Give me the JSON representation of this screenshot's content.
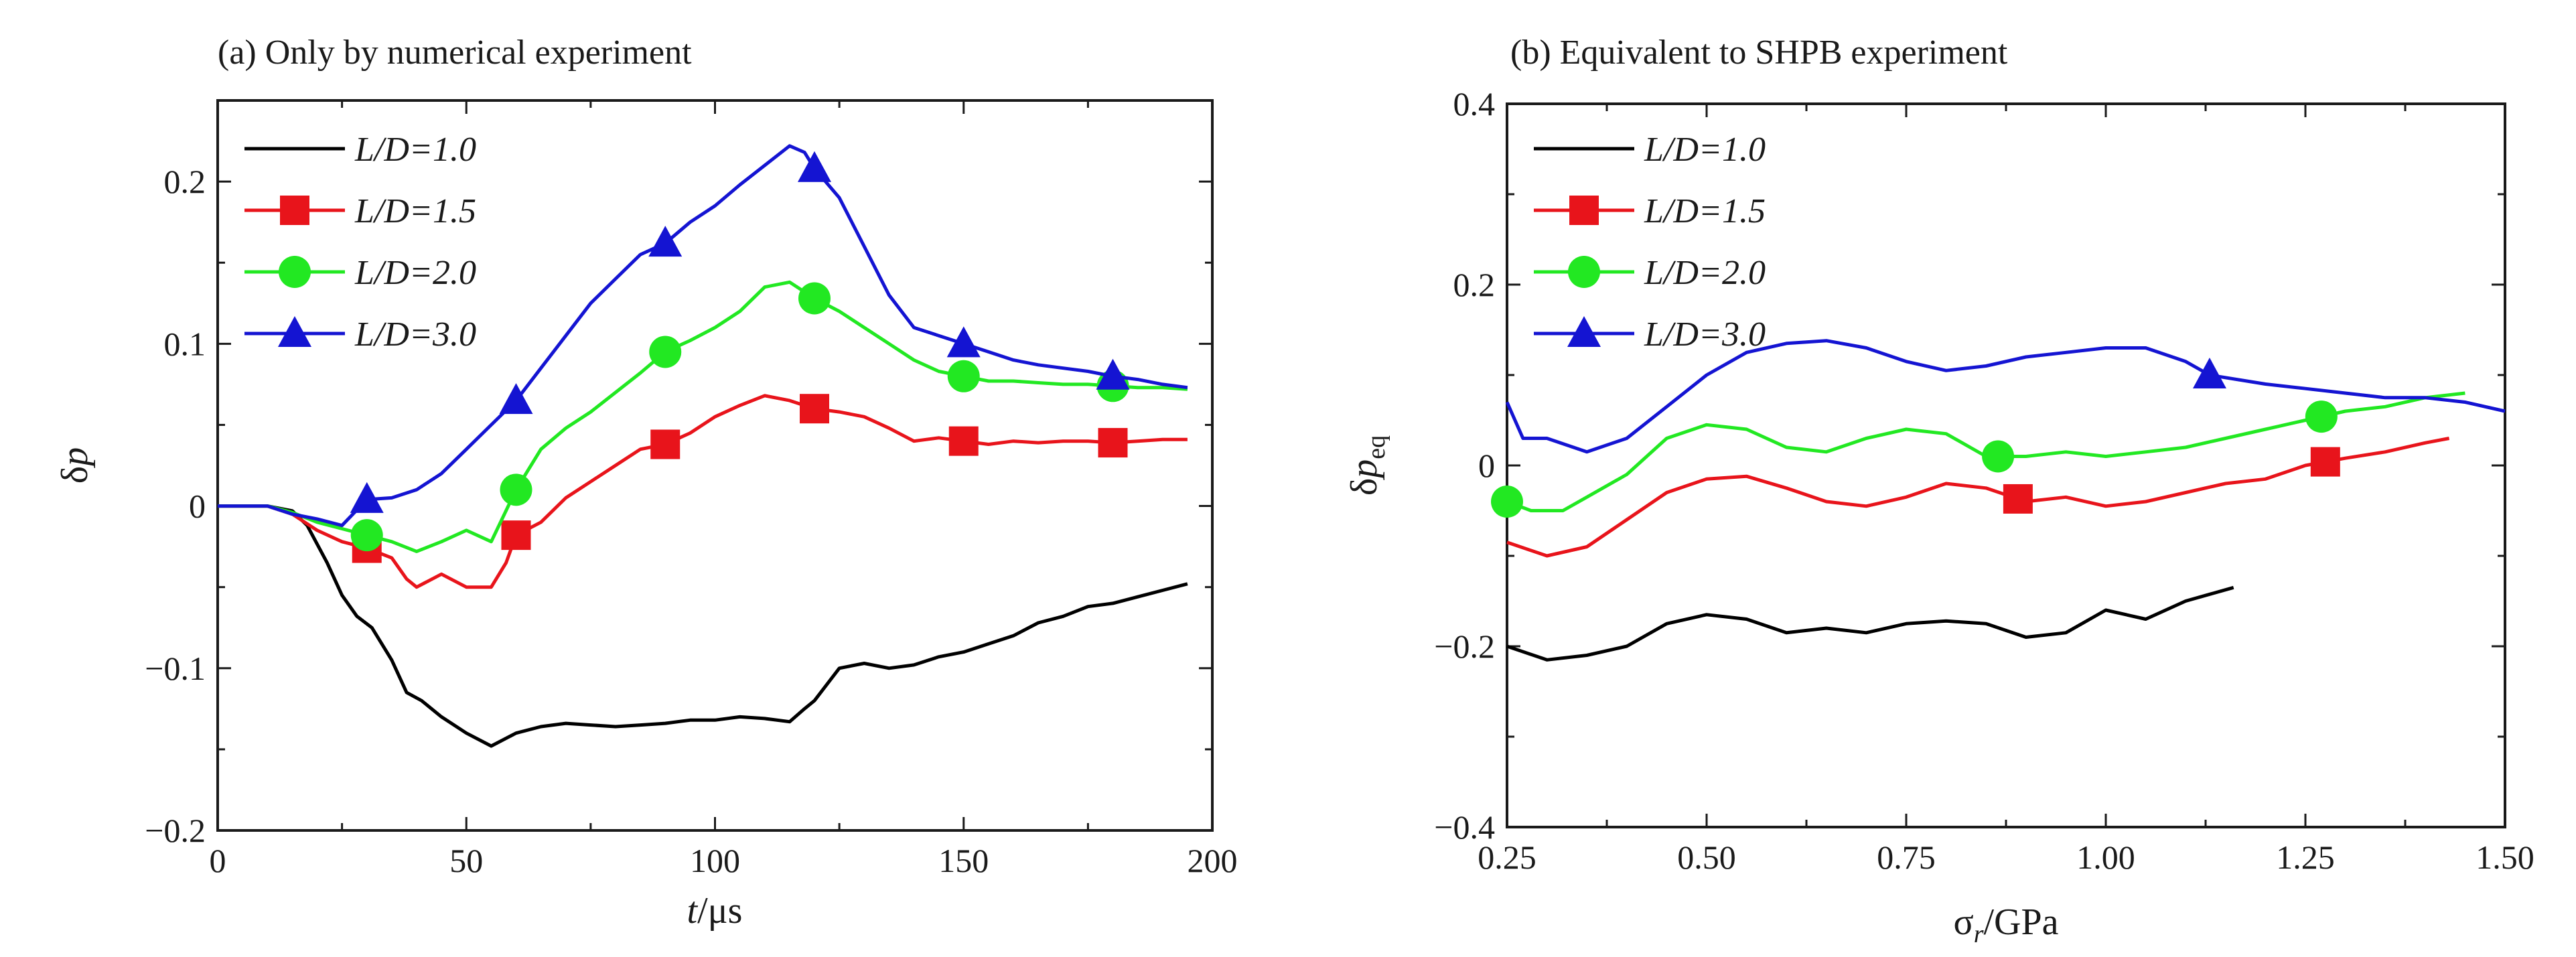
{
  "colors": {
    "L/D=1.0": "#000000",
    "L/D=1.5": "#e8141b",
    "L/D=2.0": "#22e822",
    "L/D=3.0": "#1414d2"
  },
  "legend_labels": [
    "L/D=1.0",
    "L/D=1.5",
    "L/D=2.0",
    "L/D=3.0"
  ],
  "chart_data": [
    {
      "type": "line",
      "title": "(a) Only by numerical experiment",
      "xlabel": "t/μs",
      "ylabel": "δp",
      "xlim": [
        0,
        200
      ],
      "ylim": [
        -0.2,
        0.25
      ],
      "xticks": [
        0,
        50,
        100,
        150,
        200
      ],
      "xtick_labels": [
        "0",
        "50",
        "100",
        "150",
        "200"
      ],
      "yticks": [
        -0.2,
        -0.1,
        0,
        0.1,
        0.2
      ],
      "ytick_labels": [
        "−0.2",
        "−0.1",
        "0",
        "0.1",
        "0.2"
      ],
      "grid": false,
      "legend_position": "top-left",
      "series": [
        {
          "name": "L/D=1.0",
          "marker": "none",
          "x": [
            0,
            5,
            10,
            15,
            18,
            22,
            25,
            28,
            31,
            35,
            38,
            41,
            45,
            50,
            55,
            60,
            65,
            70,
            75,
            80,
            85,
            90,
            95,
            100,
            105,
            110,
            115,
            118,
            120,
            125,
            130,
            135,
            140,
            145,
            150,
            155,
            160,
            165,
            170,
            175,
            180,
            185,
            190,
            195
          ],
          "y": [
            0,
            0,
            0,
            -0.003,
            -0.012,
            -0.035,
            -0.055,
            -0.068,
            -0.075,
            -0.095,
            -0.115,
            -0.12,
            -0.13,
            -0.14,
            -0.148,
            -0.14,
            -0.136,
            -0.134,
            -0.135,
            -0.136,
            -0.135,
            -0.134,
            -0.132,
            -0.132,
            -0.13,
            -0.131,
            -0.133,
            -0.125,
            -0.12,
            -0.1,
            -0.097,
            -0.1,
            -0.098,
            -0.093,
            -0.09,
            -0.085,
            -0.08,
            -0.072,
            -0.068,
            -0.062,
            -0.06,
            -0.056,
            -0.052,
            -0.048
          ]
        },
        {
          "name": "L/D=1.5",
          "marker": "square",
          "x": [
            0,
            5,
            10,
            15,
            20,
            25,
            30,
            35,
            38,
            40,
            45,
            50,
            55,
            58,
            60,
            65,
            70,
            75,
            80,
            85,
            90,
            95,
            100,
            105,
            110,
            115,
            120,
            125,
            130,
            135,
            140,
            145,
            150,
            155,
            160,
            165,
            170,
            175,
            180,
            185,
            190,
            195
          ],
          "y": [
            0,
            0,
            0,
            -0.005,
            -0.015,
            -0.022,
            -0.026,
            -0.032,
            -0.045,
            -0.05,
            -0.042,
            -0.05,
            -0.05,
            -0.035,
            -0.018,
            -0.01,
            0.005,
            0.015,
            0.025,
            0.035,
            0.038,
            0.045,
            0.055,
            0.062,
            0.068,
            0.065,
            0.06,
            0.058,
            0.055,
            0.048,
            0.04,
            0.042,
            0.04,
            0.038,
            0.04,
            0.039,
            0.04,
            0.04,
            0.039,
            0.04,
            0.041,
            0.041
          ],
          "marker_x": [
            30,
            60,
            90,
            120,
            150,
            180
          ]
        },
        {
          "name": "L/D=2.0",
          "marker": "circle",
          "x": [
            0,
            5,
            10,
            15,
            20,
            25,
            30,
            35,
            40,
            45,
            50,
            55,
            60,
            65,
            70,
            75,
            80,
            85,
            90,
            95,
            100,
            105,
            110,
            115,
            120,
            125,
            130,
            135,
            140,
            145,
            150,
            155,
            160,
            165,
            170,
            175,
            180,
            185,
            190,
            195
          ],
          "y": [
            0,
            0,
            0,
            -0.004,
            -0.01,
            -0.014,
            -0.018,
            -0.022,
            -0.028,
            -0.022,
            -0.015,
            -0.022,
            0.01,
            0.035,
            0.048,
            0.058,
            0.07,
            0.082,
            0.095,
            0.102,
            0.11,
            0.12,
            0.135,
            0.138,
            0.128,
            0.12,
            0.11,
            0.1,
            0.09,
            0.083,
            0.08,
            0.077,
            0.077,
            0.076,
            0.075,
            0.075,
            0.074,
            0.073,
            0.073,
            0.072
          ],
          "marker_x": [
            30,
            60,
            90,
            120,
            150,
            180
          ]
        },
        {
          "name": "L/D=3.0",
          "marker": "triangle",
          "x": [
            0,
            5,
            10,
            15,
            20,
            25,
            30,
            35,
            40,
            45,
            50,
            55,
            60,
            65,
            70,
            75,
            80,
            85,
            90,
            95,
            100,
            105,
            110,
            115,
            118,
            120,
            125,
            130,
            135,
            140,
            145,
            150,
            155,
            160,
            165,
            170,
            175,
            180,
            185,
            190,
            195
          ],
          "y": [
            0,
            0,
            0,
            -0.005,
            -0.008,
            -0.012,
            0.004,
            0.005,
            0.01,
            0.02,
            0.035,
            0.05,
            0.065,
            0.085,
            0.105,
            0.125,
            0.14,
            0.155,
            0.162,
            0.175,
            0.185,
            0.198,
            0.21,
            0.222,
            0.218,
            0.208,
            0.19,
            0.16,
            0.13,
            0.11,
            0.105,
            0.1,
            0.095,
            0.09,
            0.087,
            0.085,
            0.083,
            0.08,
            0.078,
            0.075,
            0.073
          ],
          "marker_x": [
            30,
            60,
            90,
            120,
            150,
            180
          ]
        }
      ]
    },
    {
      "type": "line",
      "title": "(b) Equivalent to SHPB experiment",
      "xlabel": "σr/GPa",
      "ylabel": "δp_eq",
      "xlim": [
        0.25,
        1.5
      ],
      "ylim": [
        -0.4,
        0.4
      ],
      "xticks": [
        0.25,
        0.5,
        0.75,
        1.0,
        1.25,
        1.5
      ],
      "xtick_labels": [
        "0.25",
        "0.50",
        "0.75",
        "1.00",
        "1.25",
        "1.50"
      ],
      "yticks": [
        -0.4,
        -0.2,
        0,
        0.2,
        0.4
      ],
      "ytick_labels": [
        "−0.4",
        "−0.2",
        "0",
        "0.2",
        "0.4"
      ],
      "grid": false,
      "legend_position": "top-left",
      "series": [
        {
          "name": "L/D=1.0",
          "marker": "none",
          "x": [
            0.25,
            0.3,
            0.35,
            0.4,
            0.45,
            0.5,
            0.55,
            0.6,
            0.65,
            0.7,
            0.75,
            0.8,
            0.85,
            0.9,
            0.95,
            1.0,
            1.05,
            1.1,
            1.16
          ],
          "y": [
            -0.2,
            -0.215,
            -0.21,
            -0.2,
            -0.175,
            -0.165,
            -0.17,
            -0.185,
            -0.18,
            -0.185,
            -0.175,
            -0.172,
            -0.175,
            -0.19,
            -0.185,
            -0.16,
            -0.17,
            -0.15,
            -0.135
          ]
        },
        {
          "name": "L/D=1.5",
          "marker": "square",
          "x": [
            0.25,
            0.3,
            0.35,
            0.4,
            0.45,
            0.5,
            0.55,
            0.6,
            0.65,
            0.7,
            0.75,
            0.8,
            0.85,
            0.9,
            0.95,
            1.0,
            1.05,
            1.1,
            1.15,
            1.2,
            1.25,
            1.3,
            1.35,
            1.4,
            1.43
          ],
          "y": [
            -0.085,
            -0.1,
            -0.09,
            -0.06,
            -0.03,
            -0.015,
            -0.012,
            -0.025,
            -0.04,
            -0.045,
            -0.035,
            -0.02,
            -0.025,
            -0.04,
            -0.035,
            -0.045,
            -0.04,
            -0.03,
            -0.02,
            -0.015,
            0.0,
            0.008,
            0.015,
            0.025,
            0.03
          ],
          "marker_x": [
            0.89,
            1.275
          ]
        },
        {
          "name": "L/D=2.0",
          "marker": "circle",
          "x": [
            0.25,
            0.28,
            0.32,
            0.35,
            0.4,
            0.45,
            0.5,
            0.55,
            0.6,
            0.65,
            0.7,
            0.75,
            0.8,
            0.85,
            0.9,
            0.95,
            1.0,
            1.05,
            1.1,
            1.15,
            1.2,
            1.25,
            1.3,
            1.35,
            1.4,
            1.45
          ],
          "y": [
            -0.04,
            -0.05,
            -0.05,
            -0.035,
            -0.01,
            0.03,
            0.045,
            0.04,
            0.02,
            0.015,
            0.03,
            0.04,
            0.035,
            0.01,
            0.01,
            0.015,
            0.01,
            0.015,
            0.02,
            0.03,
            0.04,
            0.05,
            0.06,
            0.065,
            0.075,
            0.08
          ],
          "marker_x": [
            0.25,
            0.865,
            1.27
          ]
        },
        {
          "name": "L/D=3.0",
          "marker": "triangle",
          "x": [
            0.25,
            0.27,
            0.3,
            0.35,
            0.4,
            0.45,
            0.5,
            0.55,
            0.6,
            0.65,
            0.7,
            0.75,
            0.8,
            0.85,
            0.9,
            0.95,
            1.0,
            1.05,
            1.1,
            1.13,
            1.2,
            1.25,
            1.3,
            1.35,
            1.4,
            1.45,
            1.5
          ],
          "y": [
            0.07,
            0.03,
            0.03,
            0.015,
            0.03,
            0.065,
            0.1,
            0.125,
            0.135,
            0.138,
            0.13,
            0.115,
            0.105,
            0.11,
            0.12,
            0.125,
            0.13,
            0.13,
            0.115,
            0.1,
            0.09,
            0.085,
            0.08,
            0.075,
            0.075,
            0.07,
            0.06
          ],
          "marker_x": [
            1.13
          ]
        }
      ]
    }
  ]
}
